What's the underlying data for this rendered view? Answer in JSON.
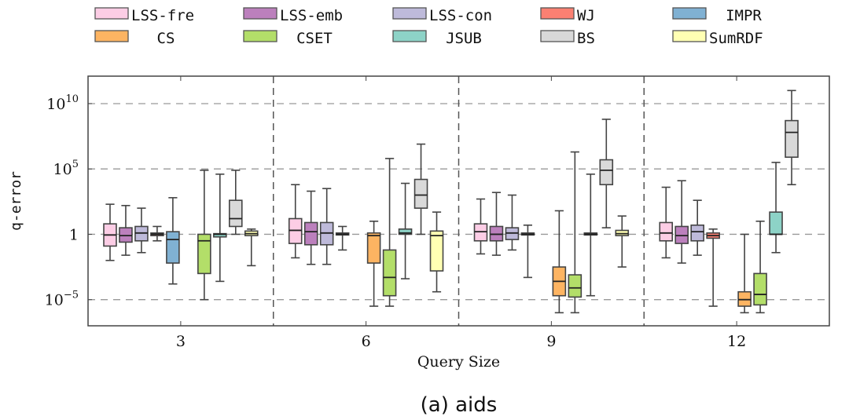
{
  "chart_data": {
    "type": "boxplot",
    "title": "",
    "caption": "(a) aids",
    "xlabel": "Query Size",
    "ylabel": "q-error",
    "yscale": "log10",
    "ylim_exponent": [
      -7,
      12.1
    ],
    "yticks": [
      {
        "exp": 10,
        "base": "10",
        "sup": "10"
      },
      {
        "exp": 5,
        "base": "10",
        "sup": "5"
      },
      {
        "exp": 0,
        "base": "1",
        "sup": ""
      },
      {
        "exp": -5,
        "base": "10",
        "sup": "−5"
      }
    ],
    "grid": "horizontal dashed at major ticks, vertical dashed group separators",
    "legend_position": "top",
    "categories": [
      "3",
      "6",
      "9",
      "12"
    ],
    "series": [
      {
        "name": "LSS-fre",
        "color": "#fccde5",
        "boxes": [
          {
            "category": "3",
            "whisker_low": -2.0,
            "q1": -0.9,
            "median": -0.05,
            "q3": 0.8,
            "whisker_high": 2.3
          },
          {
            "category": "6",
            "whisker_low": -1.8,
            "q1": -0.7,
            "median": 0.3,
            "q3": 1.2,
            "whisker_high": 3.8
          },
          {
            "category": "9",
            "whisker_low": -1.5,
            "q1": -0.5,
            "median": 0.2,
            "q3": 0.8,
            "whisker_high": 2.7
          },
          {
            "category": "12",
            "whisker_low": -1.8,
            "q1": -0.5,
            "median": 0.1,
            "q3": 0.9,
            "whisker_high": 3.6
          }
        ]
      },
      {
        "name": "LSS-emb",
        "color": "#bc80bd",
        "boxes": [
          {
            "category": "3",
            "whisker_low": -1.6,
            "q1": -0.6,
            "median": -0.1,
            "q3": 0.5,
            "whisker_high": 2.2
          },
          {
            "category": "6",
            "whisker_low": -2.3,
            "q1": -0.8,
            "median": 0.2,
            "q3": 0.9,
            "whisker_high": 3.3
          },
          {
            "category": "9",
            "whisker_low": -1.6,
            "q1": -0.5,
            "median": 0.0,
            "q3": 0.6,
            "whisker_high": 3.2
          },
          {
            "category": "12",
            "whisker_low": -2.2,
            "q1": -0.7,
            "median": -0.1,
            "q3": 0.6,
            "whisker_high": 4.1
          }
        ]
      },
      {
        "name": "LSS-con",
        "color": "#bebada",
        "boxes": [
          {
            "category": "3",
            "whisker_low": -1.4,
            "q1": -0.5,
            "median": 0.1,
            "q3": 0.6,
            "whisker_high": 2.0
          },
          {
            "category": "6",
            "whisker_low": -2.3,
            "q1": -0.8,
            "median": 0.1,
            "q3": 0.9,
            "whisker_high": 3.5
          },
          {
            "category": "9",
            "whisker_low": -1.2,
            "q1": -0.4,
            "median": 0.1,
            "q3": 0.5,
            "whisker_high": 3.0
          },
          {
            "category": "12",
            "whisker_low": -1.6,
            "q1": -0.5,
            "median": 0.2,
            "q3": 0.7,
            "whisker_high": 2.6
          }
        ]
      },
      {
        "name": "WJ",
        "color": "#fb8072",
        "boxes": [
          {
            "category": "3",
            "whisker_low": -0.5,
            "q1": -0.1,
            "median": 0.0,
            "q3": 0.1,
            "whisker_high": 0.6
          },
          {
            "category": "6",
            "whisker_low": -1.2,
            "q1": -0.05,
            "median": 0.0,
            "q3": 0.05,
            "whisker_high": 0.6
          },
          {
            "category": "9",
            "whisker_low": -3.3,
            "q1": -0.05,
            "median": 0.0,
            "q3": 0.05,
            "whisker_high": 0.7
          },
          {
            "category": "12",
            "whisker_low": -5.5,
            "q1": -0.3,
            "median": -0.1,
            "q3": 0.1,
            "whisker_high": 0.4
          }
        ]
      },
      {
        "name": "IMPR",
        "color": "#80b1d3",
        "boxes": [
          {
            "category": "3",
            "whisker_low": -3.8,
            "q1": -2.2,
            "median": -0.4,
            "q3": 0.2,
            "whisker_high": 2.8
          }
        ]
      },
      {
        "name": "CS",
        "color": "#fdb462",
        "boxes": [
          {
            "category": "6",
            "whisker_low": -5.5,
            "q1": -2.2,
            "median": -0.1,
            "q3": 0.1,
            "whisker_high": 1.0
          },
          {
            "category": "9",
            "whisker_low": -6.0,
            "q1": -4.7,
            "median": -3.6,
            "q3": -2.5,
            "whisker_high": 1.8
          },
          {
            "category": "12",
            "whisker_low": -6.0,
            "q1": -5.5,
            "median": -5.0,
            "q3": -4.4,
            "whisker_high": 0.0
          }
        ]
      },
      {
        "name": "CSET",
        "color": "#b3de69",
        "boxes": [
          {
            "category": "3",
            "whisker_low": -5.0,
            "q1": -3.0,
            "median": -0.5,
            "q3": 0.0,
            "whisker_high": 4.9
          },
          {
            "category": "6",
            "whisker_low": -5.5,
            "q1": -4.7,
            "median": -3.3,
            "q3": -1.2,
            "whisker_high": 5.8
          },
          {
            "category": "9",
            "whisker_low": -6.0,
            "q1": -4.8,
            "median": -4.1,
            "q3": -3.1,
            "whisker_high": 6.3
          },
          {
            "category": "12",
            "whisker_low": -6.0,
            "q1": -5.4,
            "median": -4.6,
            "q3": -3.0,
            "whisker_high": 1.0
          }
        ]
      },
      {
        "name": "JSUB",
        "color": "#8dd3c7",
        "boxes": [
          {
            "category": "3",
            "whisker_low": -3.6,
            "q1": -0.2,
            "median": 0.0,
            "q3": 0.05,
            "whisker_high": 4.6
          },
          {
            "category": "6",
            "whisker_low": -3.4,
            "q1": 0.0,
            "median": 0.1,
            "q3": 0.4,
            "whisker_high": 3.9
          },
          {
            "category": "9",
            "whisker_low": -4.7,
            "q1": -0.05,
            "median": 0.0,
            "q3": 0.05,
            "whisker_high": 4.6
          },
          {
            "category": "12",
            "whisker_low": -1.4,
            "q1": 0.0,
            "median": 0.0,
            "q3": 1.7,
            "whisker_high": 5.5
          }
        ]
      },
      {
        "name": "BS",
        "color": "#d9d9d9",
        "boxes": [
          {
            "category": "3",
            "whisker_low": 0.0,
            "q1": 0.6,
            "median": 1.2,
            "q3": 2.6,
            "whisker_high": 4.9
          },
          {
            "category": "6",
            "whisker_low": 0.0,
            "q1": 2.0,
            "median": 3.0,
            "q3": 4.2,
            "whisker_high": 6.9
          },
          {
            "category": "9",
            "whisker_low": 0.5,
            "q1": 3.8,
            "median": 4.9,
            "q3": 5.7,
            "whisker_high": 8.8
          },
          {
            "category": "12",
            "whisker_low": 3.8,
            "q1": 5.9,
            "median": 7.8,
            "q3": 8.7,
            "whisker_high": 11.0
          }
        ]
      },
      {
        "name": "SumRDF",
        "color": "#ffffb3",
        "boxes": [
          {
            "category": "3",
            "whisker_low": -2.4,
            "q1": -0.1,
            "median": 0.05,
            "q3": 0.25,
            "whisker_high": 0.4
          },
          {
            "category": "6",
            "whisker_low": -4.4,
            "q1": -2.8,
            "median": -0.1,
            "q3": 0.25,
            "whisker_high": 1.7
          },
          {
            "category": "9",
            "whisker_low": -2.5,
            "q1": -0.1,
            "median": 0.05,
            "q3": 0.3,
            "whisker_high": 1.4
          }
        ]
      }
    ],
    "legend": [
      {
        "name": "LSS-fre",
        "color": "#fccde5"
      },
      {
        "name": "LSS-emb",
        "color": "#bc80bd"
      },
      {
        "name": "LSS-con",
        "color": "#bebada"
      },
      {
        "name": "WJ",
        "color": "#fb8072"
      },
      {
        "name": "IMPR",
        "color": "#80b1d3"
      },
      {
        "name": "CS",
        "color": "#fdb462"
      },
      {
        "name": "CSET",
        "color": "#b3de69"
      },
      {
        "name": "JSUB",
        "color": "#8dd3c7"
      },
      {
        "name": "BS",
        "color": "#d9d9d9"
      },
      {
        "name": "SumRDF",
        "color": "#ffffb3"
      }
    ]
  }
}
